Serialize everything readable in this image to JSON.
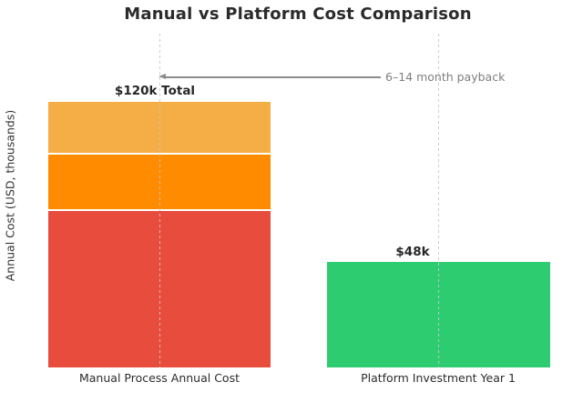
{
  "title": "Manual vs Platform Cost Comparison",
  "y_axis_label": "Annual Cost (USD, thousands)",
  "annotation": {
    "text": "6–14 month payback",
    "color": "#7f7f7f"
  },
  "bars": {
    "manual": {
      "tick_label": "Manual Process Annual Cost",
      "total_label": "$120k Total"
    },
    "platform": {
      "tick_label": "Platform Investment Year 1",
      "value_label": "$48k"
    }
  },
  "colors": {
    "manual_segment_top": "#f4ae45",
    "manual_segment_middle": "#ff8c00",
    "manual_segment_bottom": "#e74c3c",
    "platform_bar": "#2ecc71",
    "gridline": "#c8c8c8",
    "annotation_gray": "#7f7f7f",
    "text_dark": "#2b2b2b"
  },
  "chart_data": {
    "type": "bar",
    "stacked": true,
    "title": "Manual vs Platform Cost Comparison",
    "xlabel": "",
    "ylabel": "Annual Cost (USD, thousands)",
    "categories": [
      "Manual Process Annual Cost",
      "Platform Investment Year 1"
    ],
    "series": [
      {
        "name": "manual-cost-segment-bottom",
        "color": "#e74c3c",
        "values": [
          70,
          0
        ]
      },
      {
        "name": "manual-cost-segment-middle",
        "color": "#ff8c00",
        "values": [
          25,
          0
        ]
      },
      {
        "name": "manual-cost-segment-top",
        "color": "#f4ae45",
        "values": [
          25,
          0
        ]
      },
      {
        "name": "platform-investment",
        "color": "#2ecc71",
        "values": [
          0,
          48
        ]
      }
    ],
    "totals": [
      120,
      48
    ],
    "bar_labels": [
      "$120k Total",
      "$48k"
    ],
    "annotations": [
      "6–14 month payback"
    ],
    "ylim": [
      0,
      150
    ],
    "grid": "vertical dashed gridlines at each category center",
    "legend": "none"
  }
}
